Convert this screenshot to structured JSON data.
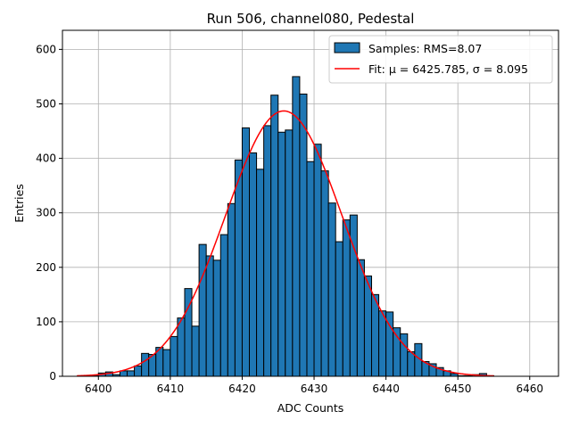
{
  "chart_data": {
    "type": "bar",
    "title": "Run 506, channel080, Pedestal",
    "xlabel": "ADC Counts",
    "ylabel": "Entries",
    "xlim": [
      6395,
      6464
    ],
    "ylim": [
      0,
      635
    ],
    "xticks": [
      6400,
      6410,
      6420,
      6430,
      6440,
      6450,
      6460
    ],
    "yticks": [
      0,
      100,
      200,
      300,
      400,
      500,
      600
    ],
    "grid": true,
    "legend_position": "top-right",
    "bin_width": 1,
    "histogram": {
      "name": "Samples: RMS=8.07",
      "color": "#1f77b4",
      "edgecolor": "#000000",
      "bin_left_edges": [
        6397,
        6398,
        6399,
        6400,
        6401,
        6402,
        6403,
        6404,
        6405,
        6406,
        6407,
        6408,
        6409,
        6410,
        6411,
        6412,
        6413,
        6414,
        6415,
        6416,
        6417,
        6418,
        6419,
        6420,
        6421,
        6422,
        6423,
        6424,
        6425,
        6426,
        6427,
        6428,
        6429,
        6430,
        6431,
        6432,
        6433,
        6434,
        6435,
        6436,
        6437,
        6438,
        6439,
        6440,
        6441,
        6442,
        6443,
        6444,
        6445,
        6446,
        6447,
        6448,
        6449,
        6450,
        6451,
        6452,
        6453,
        6454
      ],
      "counts": [
        0,
        1,
        2,
        6,
        8,
        3,
        10,
        10,
        19,
        42,
        40,
        53,
        49,
        73,
        107,
        161,
        92,
        242,
        221,
        213,
        260,
        317,
        397,
        456,
        410,
        380,
        460,
        516,
        448,
        452,
        550,
        518,
        394,
        426,
        377,
        318,
        247,
        287,
        296,
        214,
        184,
        150,
        120,
        118,
        89,
        78,
        45,
        60,
        27,
        23,
        16,
        10,
        5,
        1,
        1,
        3,
        5,
        1
      ]
    },
    "fit": {
      "name": "Fit: μ = 6425.785, σ = 8.095",
      "color": "#ff0000",
      "mu": 6425.785,
      "sigma": 8.095,
      "amplitude": 487,
      "x_range": [
        6397,
        6455
      ]
    }
  }
}
